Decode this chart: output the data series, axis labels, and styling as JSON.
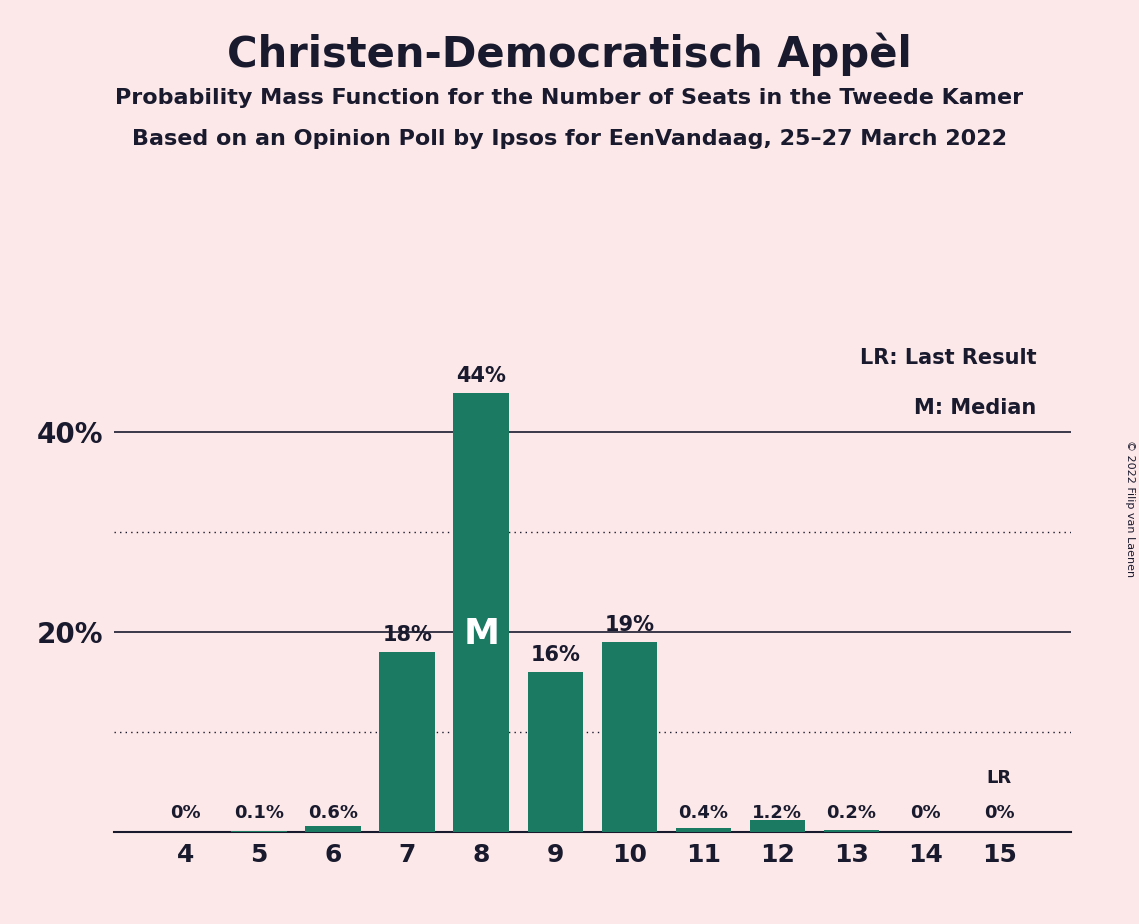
{
  "title": "Christen-Democratisch Appèl",
  "subtitle1": "Probability Mass Function for the Number of Seats in the Tweede Kamer",
  "subtitle2": "Based on an Opinion Poll by Ipsos for EenVandaag, 25–27 March 2022",
  "copyright": "© 2022 Filip van Laenen",
  "legend_lr": "LR: Last Result",
  "legend_m": "M: Median",
  "categories": [
    4,
    5,
    6,
    7,
    8,
    9,
    10,
    11,
    12,
    13,
    14,
    15
  ],
  "values": [
    0.0,
    0.1,
    0.6,
    18.0,
    44.0,
    16.0,
    19.0,
    0.4,
    1.2,
    0.2,
    0.0,
    0.0
  ],
  "labels": [
    "0%",
    "0.1%",
    "0.6%",
    "18%",
    "44%",
    "16%",
    "19%",
    "0.4%",
    "1.2%",
    "0.2%",
    "0%",
    "0%"
  ],
  "bar_color": "#1a7a62",
  "background_color": "#fce8e8",
  "text_color": "#1a1a2e",
  "median_bar_idx": 4,
  "last_result_bar_idx": 11,
  "ylim": [
    0,
    50
  ],
  "yticks": [
    20,
    40
  ],
  "ytick_labels": [
    "20%",
    "40%"
  ],
  "dotted_lines": [
    10,
    30
  ],
  "solid_lines": [
    20,
    40
  ],
  "label_threshold": 5.0
}
